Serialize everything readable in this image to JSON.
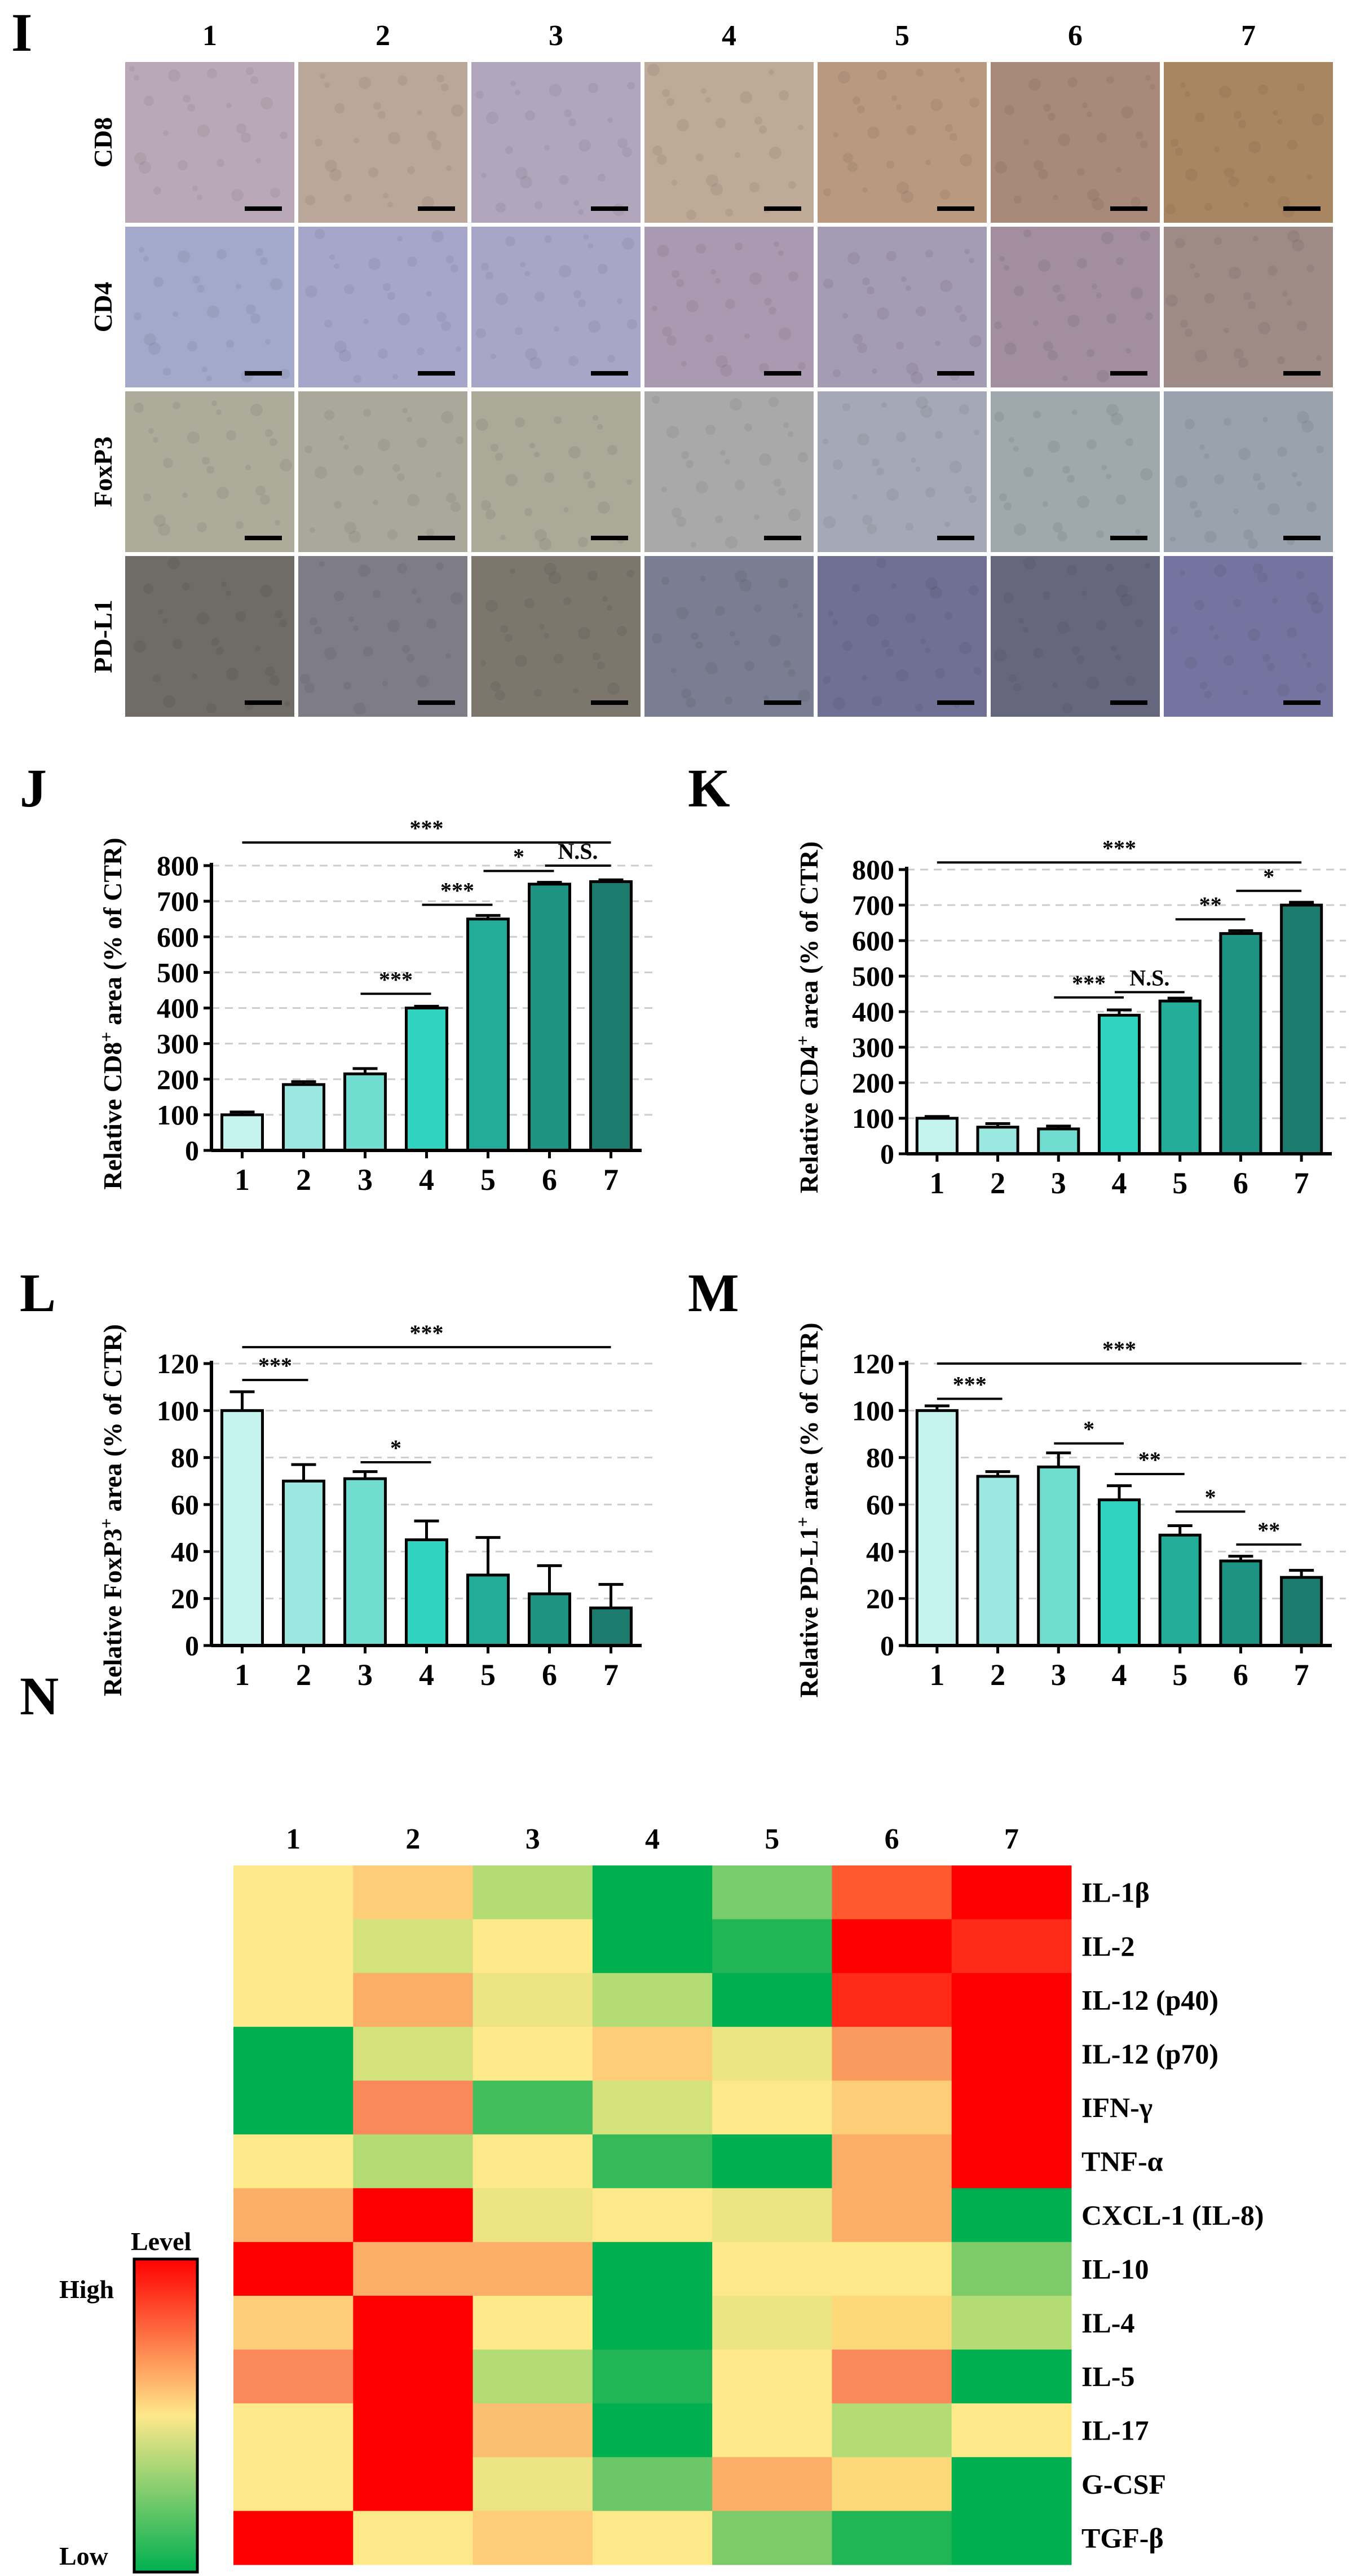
{
  "panel_i": {
    "letter": "I",
    "column_labels": [
      "1",
      "2",
      "3",
      "4",
      "5",
      "6",
      "7"
    ],
    "rows": [
      {
        "label": "CD8",
        "colors": [
          "#b9a9b8",
          "#bba79a",
          "#b2a6bd",
          "#bfa997",
          "#b99a80",
          "#a98a7a",
          "#a98662"
        ]
      },
      {
        "label": "CD4",
        "colors": [
          "#a3a9cb",
          "#a6a6cb",
          "#a7a6c9",
          "#a99ab1",
          "#a49bb4",
          "#a28e9e",
          "#9f8b86"
        ]
      },
      {
        "label": "FoxP3",
        "colors": [
          "#adab9a",
          "#aaa79b",
          "#aba998",
          "#a8a9a8",
          "#a5a9b7",
          "#9ea8ad",
          "#9aa2ad"
        ]
      },
      {
        "label": "PD-L1",
        "colors": [
          "#6f6b66",
          "#7d7c87",
          "#7c766d",
          "#7a7e92",
          "#6f7094",
          "#66667f",
          "#7574a0"
        ]
      }
    ]
  },
  "chart_data": [
    {
      "id": "J",
      "type": "bar",
      "letter": "J",
      "ylabel_parts": [
        "Relative CD8",
        "+",
        " area (% of CTR)"
      ],
      "categories": [
        "1",
        "2",
        "3",
        "4",
        "5",
        "6",
        "7"
      ],
      "values": [
        100,
        185,
        215,
        400,
        650,
        748,
        755
      ],
      "errors": [
        8,
        8,
        15,
        5,
        10,
        5,
        5
      ],
      "ylim": [
        0,
        800
      ],
      "yticks": [
        0,
        100,
        200,
        300,
        400,
        500,
        600,
        700,
        800
      ],
      "grid": "dashed",
      "bar_colors": [
        "#c5f3ed",
        "#9ae8df",
        "#70ddd0",
        "#30d2c0",
        "#23ad99",
        "#1e9383",
        "#1b7b6d"
      ],
      "significance": [
        {
          "from": "1",
          "to": "7",
          "label": "***",
          "level": 865
        },
        {
          "from": "3",
          "to": "4",
          "label": "***",
          "level": 440
        },
        {
          "from": "4",
          "to": "5",
          "label": "***",
          "level": 690
        },
        {
          "from": "5",
          "to": "6",
          "label": "*",
          "level": 785
        },
        {
          "from": "6",
          "to": "7",
          "label": "N.S.",
          "level": 800
        }
      ]
    },
    {
      "id": "K",
      "type": "bar",
      "letter": "K",
      "ylabel_parts": [
        "Relative CD4",
        "+",
        " area (% of CTR)"
      ],
      "categories": [
        "1",
        "2",
        "3",
        "4",
        "5",
        "6",
        "7"
      ],
      "values": [
        100,
        75,
        70,
        390,
        430,
        620,
        700
      ],
      "errors": [
        5,
        10,
        8,
        15,
        8,
        8,
        8
      ],
      "ylim": [
        0,
        800
      ],
      "yticks": [
        0,
        100,
        200,
        300,
        400,
        500,
        600,
        700,
        800
      ],
      "grid": "dashed",
      "bar_colors": [
        "#c5f3ed",
        "#9ae8df",
        "#70ddd0",
        "#30d2c0",
        "#23ad99",
        "#1e9383",
        "#1b7b6d"
      ],
      "significance": [
        {
          "from": "1",
          "to": "7",
          "label": "***",
          "level": 820
        },
        {
          "from": "3",
          "to": "4",
          "label": "***",
          "level": 440
        },
        {
          "from": "4",
          "to": "5",
          "label": "N.S.",
          "level": 455
        },
        {
          "from": "5",
          "to": "6",
          "label": "**",
          "level": 660
        },
        {
          "from": "6",
          "to": "7",
          "label": "*",
          "level": 740
        }
      ]
    },
    {
      "id": "L",
      "type": "bar",
      "letter": "L",
      "ylabel_parts": [
        "Relative FoxP3",
        "+",
        " area (% of CTR)"
      ],
      "categories": [
        "1",
        "2",
        "3",
        "4",
        "5",
        "6",
        "7"
      ],
      "values": [
        100,
        70,
        71,
        45,
        30,
        22,
        16
      ],
      "errors": [
        8,
        7,
        3,
        8,
        16,
        12,
        10
      ],
      "ylim": [
        0,
        120
      ],
      "yticks": [
        0,
        20,
        40,
        60,
        80,
        100,
        120
      ],
      "grid": "dashed",
      "bar_colors": [
        "#c5f3ed",
        "#9ae8df",
        "#70ddd0",
        "#30d2c0",
        "#23ad99",
        "#1e9383",
        "#1b7b6d"
      ],
      "significance": [
        {
          "from": "1",
          "to": "7",
          "label": "***",
          "level": 127
        },
        {
          "from": "1",
          "to": "2",
          "label": "***",
          "level": 113
        },
        {
          "from": "3",
          "to": "4",
          "label": "*",
          "level": 78
        }
      ]
    },
    {
      "id": "M",
      "type": "bar",
      "letter": "M",
      "ylabel_parts": [
        "Relative PD-L1",
        "+",
        " area (% of CTR)"
      ],
      "categories": [
        "1",
        "2",
        "3",
        "4",
        "5",
        "6",
        "7"
      ],
      "values": [
        100,
        72,
        76,
        62,
        47,
        36,
        29
      ],
      "errors": [
        2,
        2,
        6,
        6,
        4,
        2,
        3
      ],
      "ylim": [
        0,
        120
      ],
      "yticks": [
        0,
        20,
        40,
        60,
        80,
        100,
        120
      ],
      "grid": "dashed",
      "bar_colors": [
        "#c5f3ed",
        "#9ae8df",
        "#70ddd0",
        "#30d2c0",
        "#23ad99",
        "#1e9383",
        "#1b7b6d"
      ],
      "significance": [
        {
          "from": "1",
          "to": "7",
          "label": "***",
          "level": 120
        },
        {
          "from": "1",
          "to": "2",
          "label": "***",
          "level": 105
        },
        {
          "from": "3",
          "to": "4",
          "label": "*",
          "level": 86
        },
        {
          "from": "4",
          "to": "5",
          "label": "**",
          "level": 73
        },
        {
          "from": "5",
          "to": "6",
          "label": "*",
          "level": 57
        },
        {
          "from": "6",
          "to": "7",
          "label": "**",
          "level": 43
        }
      ]
    },
    {
      "id": "N",
      "type": "heatmap",
      "letter": "N",
      "columns": [
        "1",
        "2",
        "3",
        "4",
        "5",
        "6",
        "7"
      ],
      "rows": [
        "IL-1β",
        "IL-2",
        "IL-12 (p40)",
        "IL-12 (p70)",
        "IFN-γ",
        "TNF-α",
        "CXCL-1 (IL-8)",
        "IL-10",
        "IL-4",
        "IL-5",
        "IL-17",
        "G-CSF",
        "TGF-β"
      ],
      "colors": [
        [
          "#fde88a",
          "#fdcd78",
          "#b4dc74",
          "#00b050",
          "#78cc6c",
          "#ff5a2f",
          "#ff0000"
        ],
        [
          "#fde88a",
          "#d4e27e",
          "#fde88a",
          "#00b050",
          "#22b555",
          "#ff0000",
          "#ff2a18"
        ],
        [
          "#fde88a",
          "#fbae68",
          "#ece482",
          "#b4dc74",
          "#00b050",
          "#ff2a18",
          "#ff0000"
        ],
        [
          "#00b050",
          "#d4e27e",
          "#fde88a",
          "#fdcd78",
          "#ece482",
          "#f99a5e",
          "#ff0000"
        ],
        [
          "#00b050",
          "#f9895a",
          "#44bd5c",
          "#d4e27e",
          "#fde88a",
          "#fdcd78",
          "#ff0000"
        ],
        [
          "#fde88a",
          "#b4dc74",
          "#fde88a",
          "#34ba58",
          "#00b050",
          "#fbae68",
          "#ff0000"
        ],
        [
          "#fbae68",
          "#ff0000",
          "#ece482",
          "#fde88a",
          "#ece482",
          "#fbae68",
          "#00b050"
        ],
        [
          "#ff0000",
          "#fbae68",
          "#fbae68",
          "#00b050",
          "#fde88a",
          "#fde88a",
          "#7cca68"
        ],
        [
          "#fdcd78",
          "#ff0000",
          "#fde88a",
          "#00b050",
          "#ece482",
          "#fdd878",
          "#b4dc74"
        ],
        [
          "#f9895a",
          "#ff0000",
          "#b4dc74",
          "#22b555",
          "#fde88a",
          "#f9895a",
          "#00b050"
        ],
        [
          "#fde88a",
          "#ff0000",
          "#fbbf74",
          "#00b050",
          "#fde88a",
          "#b4dc74",
          "#fde88a"
        ],
        [
          "#fde88a",
          "#ff0000",
          "#ece482",
          "#6cc768",
          "#fbae68",
          "#fdd878",
          "#00b050"
        ],
        [
          "#ff0000",
          "#fde88a",
          "#fdcd78",
          "#fde88a",
          "#7cca68",
          "#22b555",
          "#00b050"
        ]
      ],
      "legend": {
        "title": "Level",
        "high_label": "High",
        "low_label": "Low"
      }
    }
  ],
  "colors": {
    "high": "#ff0000",
    "mid": "#fde88a",
    "low": "#00b050",
    "axis": "#000000",
    "grid": "#cccccc"
  }
}
